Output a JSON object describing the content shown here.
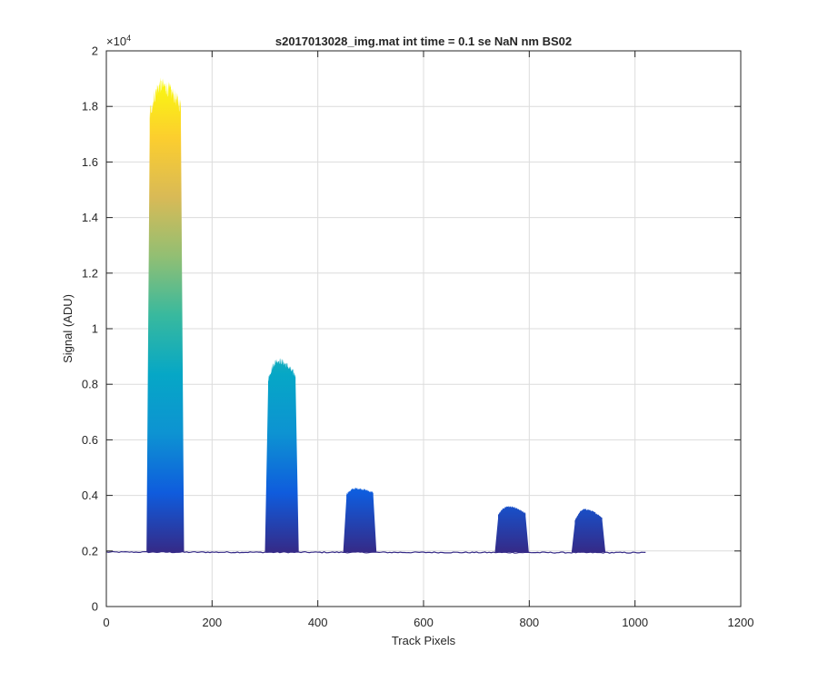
{
  "chart_data": {
    "type": "area",
    "title": "s2017013028_img.mat int time = 0.1 se  NaN nm BS02",
    "xlabel": "Track Pixels",
    "ylabel": "Signal (ADU)",
    "xlim": [
      0,
      1200
    ],
    "ylim": [
      0,
      20000
    ],
    "xticks": [
      "0",
      "200",
      "400",
      "600",
      "800",
      "1000",
      "1200"
    ],
    "yticks": [
      "0",
      "0.2",
      "0.4",
      "0.6",
      "0.8",
      "1",
      "1.2",
      "1.4",
      "1.6",
      "1.8",
      "2"
    ],
    "y_exponent_label": "×10",
    "y_exponent_power": "4",
    "grid": true,
    "colormap": "parula",
    "colormap_stops": [
      "#352a87",
      "#0f5cdd",
      "#0d93d2",
      "#06a7c6",
      "#38b99e",
      "#92bf73",
      "#d9ba56",
      "#fcce2e",
      "#f9fb0e"
    ],
    "baseline": 1960,
    "x_extent": [
      0,
      1023
    ],
    "peaks": [
      {
        "start": 78,
        "end": 145,
        "top_left": 17700,
        "top_peak": 18750,
        "top_right": 18000
      },
      {
        "start": 302,
        "end": 362,
        "top_left": 8200,
        "top_peak": 8850,
        "top_right": 8300
      },
      {
        "start": 450,
        "end": 509,
        "top_left": 4050,
        "top_peak": 4250,
        "top_right": 4100
      },
      {
        "start": 737,
        "end": 797,
        "top_left": 3300,
        "top_peak": 3600,
        "top_right": 3350
      },
      {
        "start": 882,
        "end": 942,
        "top_left": 3100,
        "top_peak": 3500,
        "top_right": 3200
      }
    ]
  }
}
